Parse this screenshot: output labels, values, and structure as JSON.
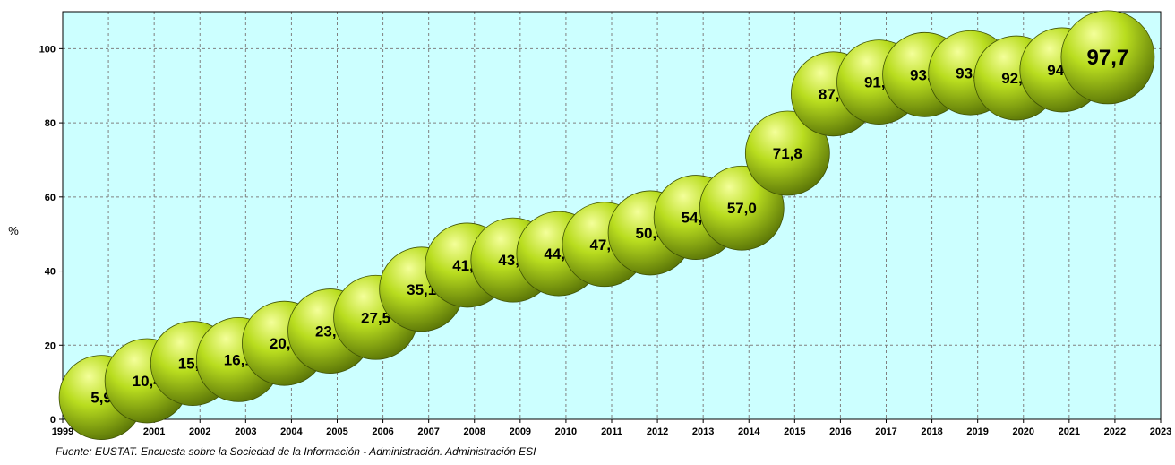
{
  "chart_data": {
    "type": "scatter",
    "marker": "sphere",
    "x": [
      2000,
      2001,
      2002,
      2003,
      2004,
      2005,
      2006,
      2007,
      2008,
      2009,
      2010,
      2011,
      2012,
      2013,
      2014,
      2015,
      2016,
      2017,
      2018,
      2019,
      2020,
      2021,
      2022
    ],
    "values": [
      5.9,
      10.4,
      15.1,
      16.1,
      20.5,
      23.8,
      27.5,
      35.1,
      41.6,
      43.0,
      44.7,
      47.2,
      50.3,
      54.5,
      57.0,
      71.8,
      87.8,
      91.0,
      93.0,
      93.5,
      92.1,
      94.3,
      97.7
    ],
    "data_labels": [
      "5,9",
      "10,4",
      "15,1",
      "16,1",
      "20,5",
      "23,8",
      "27,5",
      "35,1",
      "41,6",
      "43,0",
      "44,7",
      "47,2",
      "50,3",
      "54,5",
      "57,0",
      "71,8",
      "87,8",
      "91,0",
      "93,0",
      "93,5",
      "92,1",
      "94,3",
      "97,7"
    ],
    "highlight_last": true,
    "xlim": [
      1999,
      2023
    ],
    "ylim": [
      0,
      110
    ],
    "x_ticks": [
      1999,
      2000,
      2001,
      2002,
      2003,
      2004,
      2005,
      2006,
      2007,
      2008,
      2009,
      2010,
      2011,
      2012,
      2013,
      2014,
      2015,
      2016,
      2017,
      2018,
      2019,
      2020,
      2021,
      2022,
      2023
    ],
    "y_ticks": [
      0,
      20,
      40,
      60,
      80,
      100
    ],
    "ylabel": "%",
    "xlabel": "",
    "title": "",
    "grid": true,
    "colors": {
      "plot_background": "#ccffff",
      "marker_highlight": "#f4ff9a",
      "marker_mid": "#b9dd1f",
      "marker_dark": "#5d7808",
      "marker_edge": "#3f5205",
      "grid": "#808080"
    }
  },
  "source_note": "Fuente: EUSTAT. Encuesta sobre la Sociedad de la Información - Administración. Administración ESI"
}
